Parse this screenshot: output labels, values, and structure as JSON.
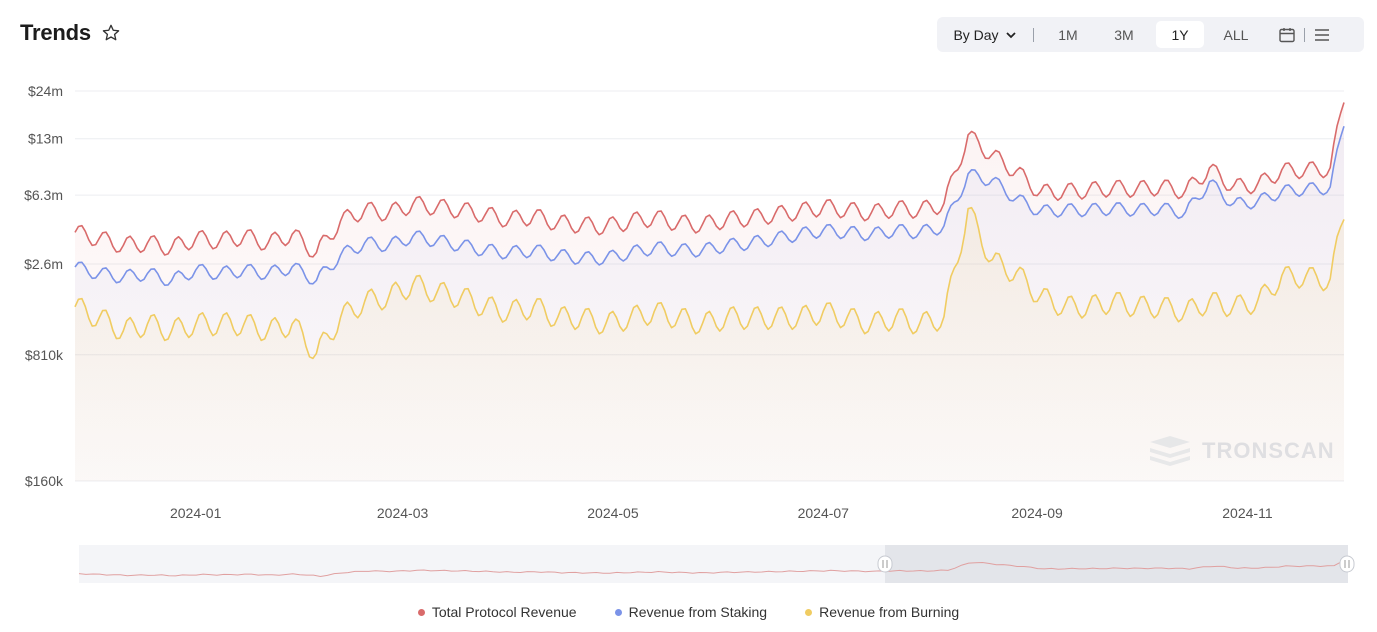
{
  "header": {
    "title": "Trends"
  },
  "toolbar": {
    "interval_label": "By Day",
    "ranges": [
      "1M",
      "3M",
      "1Y",
      "ALL"
    ],
    "active_range": "1Y"
  },
  "watermark": "TRONSCAN",
  "colors": {
    "total": "#d96b6b",
    "staking": "#7b93e8",
    "burning": "#f0cc62"
  },
  "chart_data": {
    "type": "line",
    "y_scale": "log",
    "y_ticks": [
      {
        "label": "$24m",
        "value": 24000000
      },
      {
        "label": "$13m",
        "value": 13000000
      },
      {
        "label": "$6.3m",
        "value": 6300000
      },
      {
        "label": "$2.6m",
        "value": 2600000
      },
      {
        "label": "$810k",
        "value": 810000
      },
      {
        "label": "$160k",
        "value": 160000
      }
    ],
    "x_ticks": [
      "2024-01",
      "2024-03",
      "2024-05",
      "2024-07",
      "2024-09",
      "2024-11"
    ],
    "x_tick_dates": [
      "2024-01-01",
      "2024-03-01",
      "2024-05-01",
      "2024-07-01",
      "2024-09-01",
      "2024-11-01"
    ],
    "ylim": [
      160000,
      24000000
    ],
    "legend_position": "bottom",
    "series": [
      {
        "name": "Total Protocol Revenue",
        "color_key": "total",
        "points": [
          [
            "2023-11-27",
            3900000
          ],
          [
            "2023-12-04",
            3600000
          ],
          [
            "2023-12-11",
            3300000
          ],
          [
            "2023-12-18",
            3400000
          ],
          [
            "2023-12-25",
            3200000
          ],
          [
            "2024-01-01",
            3600000
          ],
          [
            "2024-01-08",
            3500000
          ],
          [
            "2024-01-15",
            3700000
          ],
          [
            "2024-01-22",
            3400000
          ],
          [
            "2024-01-29",
            3800000
          ],
          [
            "2024-02-05",
            3000000
          ],
          [
            "2024-02-12",
            4500000
          ],
          [
            "2024-02-19",
            5200000
          ],
          [
            "2024-02-26",
            5000000
          ],
          [
            "2024-03-04",
            5600000
          ],
          [
            "2024-03-11",
            5400000
          ],
          [
            "2024-03-18",
            5200000
          ],
          [
            "2024-03-25",
            4900000
          ],
          [
            "2024-04-01",
            4600000
          ],
          [
            "2024-04-08",
            4800000
          ],
          [
            "2024-04-15",
            4400000
          ],
          [
            "2024-04-22",
            4300000
          ],
          [
            "2024-04-29",
            4200000
          ],
          [
            "2024-05-06",
            4500000
          ],
          [
            "2024-05-13",
            4700000
          ],
          [
            "2024-05-20",
            4400000
          ],
          [
            "2024-05-27",
            4300000
          ],
          [
            "2024-06-03",
            4600000
          ],
          [
            "2024-06-10",
            4700000
          ],
          [
            "2024-06-17",
            4900000
          ],
          [
            "2024-06-24",
            5100000
          ],
          [
            "2024-07-01",
            5400000
          ],
          [
            "2024-07-08",
            5200000
          ],
          [
            "2024-07-15",
            5000000
          ],
          [
            "2024-07-22",
            5300000
          ],
          [
            "2024-07-29",
            5200000
          ],
          [
            "2024-08-05",
            5600000
          ],
          [
            "2024-08-12",
            13500000
          ],
          [
            "2024-08-19",
            10500000
          ],
          [
            "2024-08-26",
            8500000
          ],
          [
            "2024-09-02",
            6500000
          ],
          [
            "2024-09-09",
            6600000
          ],
          [
            "2024-09-16",
            6700000
          ],
          [
            "2024-09-23",
            6900000
          ],
          [
            "2024-09-30",
            6800000
          ],
          [
            "2024-10-07",
            7000000
          ],
          [
            "2024-10-14",
            6600000
          ],
          [
            "2024-10-21",
            8800000
          ],
          [
            "2024-10-28",
            7000000
          ],
          [
            "2024-11-04",
            7200000
          ],
          [
            "2024-11-11",
            8600000
          ],
          [
            "2024-11-18",
            8700000
          ],
          [
            "2024-11-25",
            8800000
          ],
          [
            "2024-11-29",
            22000000
          ]
        ]
      },
      {
        "name": "Revenue from Staking",
        "color_key": "staking",
        "points": [
          [
            "2023-11-27",
            2500000
          ],
          [
            "2023-12-04",
            2300000
          ],
          [
            "2023-12-11",
            2200000
          ],
          [
            "2023-12-18",
            2300000
          ],
          [
            "2023-12-25",
            2100000
          ],
          [
            "2024-01-01",
            2400000
          ],
          [
            "2024-01-08",
            2300000
          ],
          [
            "2024-01-15",
            2400000
          ],
          [
            "2024-01-22",
            2300000
          ],
          [
            "2024-01-29",
            2500000
          ],
          [
            "2024-02-05",
            2100000
          ],
          [
            "2024-02-12",
            2900000
          ],
          [
            "2024-02-19",
            3400000
          ],
          [
            "2024-02-26",
            3300000
          ],
          [
            "2024-03-04",
            3700000
          ],
          [
            "2024-03-11",
            3500000
          ],
          [
            "2024-03-18",
            3300000
          ],
          [
            "2024-03-25",
            3100000
          ],
          [
            "2024-04-01",
            3000000
          ],
          [
            "2024-04-08",
            3100000
          ],
          [
            "2024-04-15",
            2900000
          ],
          [
            "2024-04-22",
            2800000
          ],
          [
            "2024-04-29",
            2800000
          ],
          [
            "2024-05-06",
            3000000
          ],
          [
            "2024-05-13",
            3200000
          ],
          [
            "2024-05-20",
            3100000
          ],
          [
            "2024-05-27",
            3100000
          ],
          [
            "2024-06-03",
            3300000
          ],
          [
            "2024-06-10",
            3400000
          ],
          [
            "2024-06-17",
            3600000
          ],
          [
            "2024-06-24",
            3800000
          ],
          [
            "2024-07-01",
            4000000
          ],
          [
            "2024-07-08",
            3900000
          ],
          [
            "2024-07-15",
            3800000
          ],
          [
            "2024-07-22",
            4000000
          ],
          [
            "2024-07-29",
            3900000
          ],
          [
            "2024-08-05",
            4200000
          ],
          [
            "2024-08-12",
            8200000
          ],
          [
            "2024-08-19",
            7600000
          ],
          [
            "2024-08-26",
            6000000
          ],
          [
            "2024-09-02",
            5100000
          ],
          [
            "2024-09-09",
            5200000
          ],
          [
            "2024-09-16",
            5200000
          ],
          [
            "2024-09-23",
            5300000
          ],
          [
            "2024-09-30",
            5200000
          ],
          [
            "2024-10-07",
            5300000
          ],
          [
            "2024-10-14",
            5000000
          ],
          [
            "2024-10-21",
            7400000
          ],
          [
            "2024-10-28",
            5600000
          ],
          [
            "2024-11-04",
            5800000
          ],
          [
            "2024-11-11",
            6600000
          ],
          [
            "2024-11-18",
            6800000
          ],
          [
            "2024-11-25",
            6900000
          ],
          [
            "2024-11-29",
            16000000
          ]
        ]
      },
      {
        "name": "Revenue from Burning",
        "color_key": "burning",
        "points": [
          [
            "2023-11-27",
            1500000
          ],
          [
            "2023-12-04",
            1300000
          ],
          [
            "2023-12-11",
            1100000
          ],
          [
            "2023-12-18",
            1200000
          ],
          [
            "2023-12-25",
            1100000
          ],
          [
            "2024-01-01",
            1200000
          ],
          [
            "2024-01-08",
            1200000
          ],
          [
            "2024-01-15",
            1200000
          ],
          [
            "2024-01-22",
            1100000
          ],
          [
            "2024-01-29",
            1200000
          ],
          [
            "2024-02-05",
            820000
          ],
          [
            "2024-02-12",
            1300000
          ],
          [
            "2024-02-19",
            1600000
          ],
          [
            "2024-02-26",
            1700000
          ],
          [
            "2024-03-04",
            2000000
          ],
          [
            "2024-03-11",
            1800000
          ],
          [
            "2024-03-18",
            1700000
          ],
          [
            "2024-03-25",
            1500000
          ],
          [
            "2024-04-01",
            1400000
          ],
          [
            "2024-04-08",
            1500000
          ],
          [
            "2024-04-15",
            1300000
          ],
          [
            "2024-04-22",
            1300000
          ],
          [
            "2024-04-29",
            1200000
          ],
          [
            "2024-05-06",
            1300000
          ],
          [
            "2024-05-13",
            1400000
          ],
          [
            "2024-05-20",
            1300000
          ],
          [
            "2024-05-27",
            1200000
          ],
          [
            "2024-06-03",
            1300000
          ],
          [
            "2024-06-10",
            1300000
          ],
          [
            "2024-06-17",
            1300000
          ],
          [
            "2024-06-24",
            1300000
          ],
          [
            "2024-07-01",
            1400000
          ],
          [
            "2024-07-08",
            1300000
          ],
          [
            "2024-07-15",
            1200000
          ],
          [
            "2024-07-22",
            1300000
          ],
          [
            "2024-07-29",
            1200000
          ],
          [
            "2024-08-05",
            1300000
          ],
          [
            "2024-08-12",
            5200000
          ],
          [
            "2024-08-19",
            2700000
          ],
          [
            "2024-08-26",
            2300000
          ],
          [
            "2024-09-02",
            1700000
          ],
          [
            "2024-09-09",
            1500000
          ],
          [
            "2024-09-16",
            1500000
          ],
          [
            "2024-09-23",
            1600000
          ],
          [
            "2024-09-30",
            1500000
          ],
          [
            "2024-10-07",
            1500000
          ],
          [
            "2024-10-14",
            1400000
          ],
          [
            "2024-10-21",
            1600000
          ],
          [
            "2024-10-28",
            1500000
          ],
          [
            "2024-11-04",
            1600000
          ],
          [
            "2024-11-11",
            2200000
          ],
          [
            "2024-11-18",
            2200000
          ],
          [
            "2024-11-25",
            2100000
          ],
          [
            "2024-11-29",
            5000000
          ]
        ]
      }
    ]
  }
}
